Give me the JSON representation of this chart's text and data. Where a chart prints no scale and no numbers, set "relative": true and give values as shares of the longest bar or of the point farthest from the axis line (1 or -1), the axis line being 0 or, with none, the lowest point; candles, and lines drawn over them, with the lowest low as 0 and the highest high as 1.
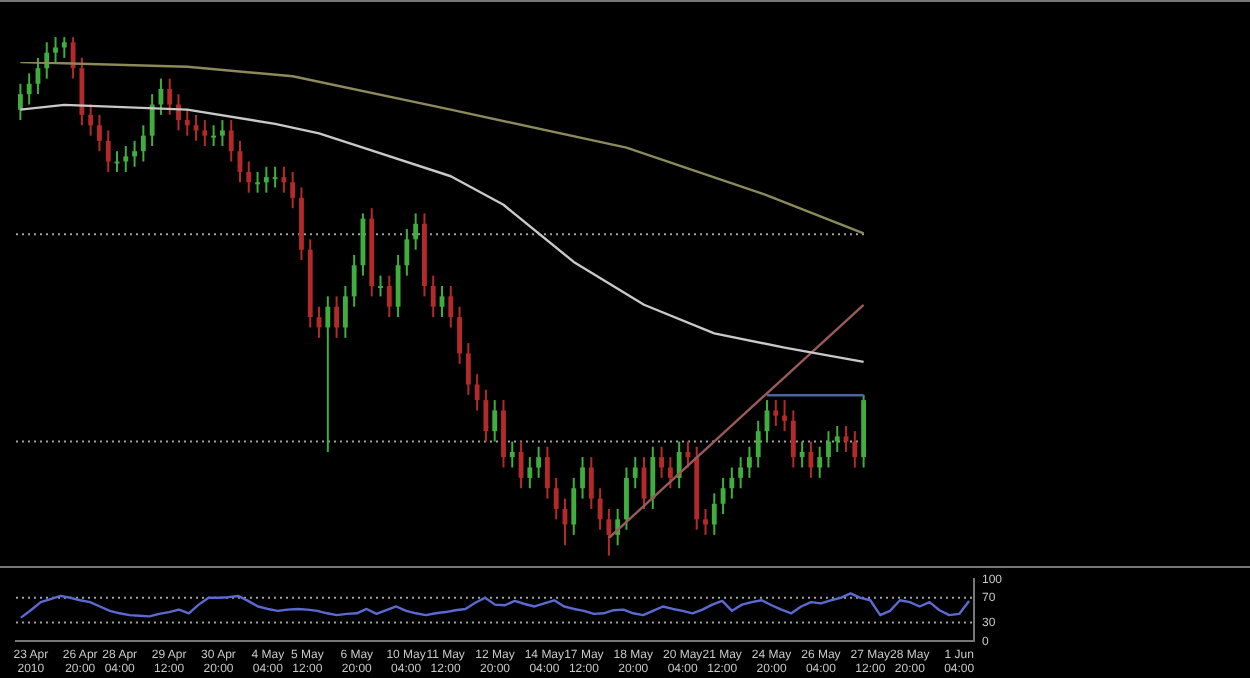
{
  "chart_data": [
    {
      "type": "candlestick",
      "relative": true,
      "tick_labels": false,
      "categories": [
        null,
        null,
        null,
        null,
        null,
        null,
        null,
        null,
        null,
        null,
        null,
        null,
        null,
        null,
        null,
        null,
        null,
        null,
        null,
        null,
        null,
        null,
        null,
        null,
        null,
        null,
        null,
        null,
        null,
        null,
        null,
        null,
        null,
        null,
        null,
        null,
        null,
        null,
        null,
        null,
        null,
        null,
        null,
        null,
        null,
        null,
        null,
        null,
        null,
        null,
        null,
        null,
        null,
        null,
        null,
        null,
        null,
        null,
        null,
        null,
        null,
        null,
        null,
        null,
        null,
        null,
        null,
        null,
        null,
        null,
        null,
        null,
        null,
        null,
        null,
        null,
        null,
        null,
        null,
        null,
        null,
        null,
        null,
        null,
        null,
        null,
        null,
        null,
        null,
        null,
        null,
        null,
        null,
        null,
        null,
        null,
        null
      ],
      "ohlc": [
        [
          0.86,
          0.91,
          0.84,
          0.89
        ],
        [
          0.89,
          0.93,
          0.87,
          0.91
        ],
        [
          0.91,
          0.96,
          0.89,
          0.94
        ],
        [
          0.94,
          0.99,
          0.92,
          0.97
        ],
        [
          0.97,
          1.0,
          0.95,
          0.98
        ],
        [
          0.98,
          1.0,
          0.96,
          0.99
        ],
        [
          0.99,
          1.0,
          0.92,
          0.94
        ],
        [
          0.94,
          0.96,
          0.83,
          0.85
        ],
        [
          0.85,
          0.87,
          0.81,
          0.83
        ],
        [
          0.83,
          0.85,
          0.78,
          0.8
        ],
        [
          0.8,
          0.82,
          0.74,
          0.76
        ],
        [
          0.76,
          0.78,
          0.74,
          0.76
        ],
        [
          0.76,
          0.79,
          0.74,
          0.77
        ],
        [
          0.77,
          0.8,
          0.75,
          0.78
        ],
        [
          0.78,
          0.83,
          0.76,
          0.81
        ],
        [
          0.81,
          0.89,
          0.79,
          0.87
        ],
        [
          0.87,
          0.92,
          0.85,
          0.9
        ],
        [
          0.9,
          0.92,
          0.85,
          0.87
        ],
        [
          0.87,
          0.89,
          0.82,
          0.84
        ],
        [
          0.84,
          0.86,
          0.81,
          0.83
        ],
        [
          0.83,
          0.85,
          0.8,
          0.82
        ],
        [
          0.82,
          0.84,
          0.79,
          0.81
        ],
        [
          0.81,
          0.83,
          0.79,
          0.81
        ],
        [
          0.81,
          0.84,
          0.79,
          0.82
        ],
        [
          0.82,
          0.84,
          0.76,
          0.78
        ],
        [
          0.78,
          0.8,
          0.72,
          0.74
        ],
        [
          0.74,
          0.76,
          0.7,
          0.72
        ],
        [
          0.72,
          0.74,
          0.7,
          0.72
        ],
        [
          0.72,
          0.75,
          0.7,
          0.73
        ],
        [
          0.73,
          0.75,
          0.71,
          0.73
        ],
        [
          0.73,
          0.75,
          0.7,
          0.72
        ],
        [
          0.72,
          0.74,
          0.67,
          0.69
        ],
        [
          0.69,
          0.71,
          0.57,
          0.59
        ],
        [
          0.59,
          0.61,
          0.44,
          0.46
        ],
        [
          0.46,
          0.48,
          0.42,
          0.44
        ],
        [
          0.44,
          0.5,
          0.2,
          0.48
        ],
        [
          0.48,
          0.5,
          0.42,
          0.44
        ],
        [
          0.44,
          0.52,
          0.42,
          0.5
        ],
        [
          0.5,
          0.58,
          0.48,
          0.56
        ],
        [
          0.56,
          0.66,
          0.54,
          0.65
        ],
        [
          0.65,
          0.67,
          0.5,
          0.52
        ],
        [
          0.52,
          0.54,
          0.5,
          0.52
        ],
        [
          0.52,
          0.54,
          0.46,
          0.48
        ],
        [
          0.48,
          0.58,
          0.46,
          0.56
        ],
        [
          0.56,
          0.63,
          0.54,
          0.61
        ],
        [
          0.61,
          0.66,
          0.59,
          0.64
        ],
        [
          0.64,
          0.66,
          0.5,
          0.52
        ],
        [
          0.52,
          0.54,
          0.46,
          0.48
        ],
        [
          0.48,
          0.52,
          0.46,
          0.5
        ],
        [
          0.5,
          0.52,
          0.44,
          0.46
        ],
        [
          0.46,
          0.48,
          0.37,
          0.39
        ],
        [
          0.39,
          0.41,
          0.31,
          0.33
        ],
        [
          0.33,
          0.35,
          0.28,
          0.3
        ],
        [
          0.3,
          0.32,
          0.22,
          0.24
        ],
        [
          0.24,
          0.3,
          0.22,
          0.28
        ],
        [
          0.28,
          0.3,
          0.17,
          0.19
        ],
        [
          0.19,
          0.22,
          0.17,
          0.2
        ],
        [
          0.2,
          0.22,
          0.13,
          0.15
        ],
        [
          0.15,
          0.19,
          0.13,
          0.17
        ],
        [
          0.17,
          0.21,
          0.15,
          0.19
        ],
        [
          0.19,
          0.21,
          0.11,
          0.13
        ],
        [
          0.13,
          0.15,
          0.07,
          0.09
        ],
        [
          0.09,
          0.11,
          0.02,
          0.06
        ],
        [
          0.06,
          0.15,
          0.04,
          0.13
        ],
        [
          0.13,
          0.19,
          0.11,
          0.17
        ],
        [
          0.17,
          0.19,
          0.09,
          0.11
        ],
        [
          0.11,
          0.13,
          0.05,
          0.07
        ],
        [
          0.07,
          0.09,
          0,
          0.04
        ],
        [
          0.04,
          0.09,
          0.02,
          0.07
        ],
        [
          0.07,
          0.17,
          0.05,
          0.15
        ],
        [
          0.15,
          0.19,
          0.13,
          0.17
        ],
        [
          0.17,
          0.19,
          0.09,
          0.11
        ],
        [
          0.11,
          0.21,
          0.09,
          0.19
        ],
        [
          0.19,
          0.21,
          0.15,
          0.17
        ],
        [
          0.17,
          0.19,
          0.13,
          0.15
        ],
        [
          0.15,
          0.22,
          0.13,
          0.2
        ],
        [
          0.2,
          0.22,
          0.17,
          0.19
        ],
        [
          0.19,
          0.21,
          0.05,
          0.07
        ],
        [
          0.07,
          0.09,
          0.04,
          0.06
        ],
        [
          0.06,
          0.12,
          0.04,
          0.1
        ],
        [
          0.1,
          0.15,
          0.08,
          0.13
        ],
        [
          0.13,
          0.17,
          0.11,
          0.15
        ],
        [
          0.15,
          0.19,
          0.13,
          0.17
        ],
        [
          0.17,
          0.21,
          0.15,
          0.19
        ],
        [
          0.19,
          0.26,
          0.17,
          0.24
        ],
        [
          0.24,
          0.3,
          0.22,
          0.28
        ],
        [
          0.28,
          0.3,
          0.25,
          0.27
        ],
        [
          0.27,
          0.3,
          0.24,
          0.26
        ],
        [
          0.26,
          0.28,
          0.17,
          0.19
        ],
        [
          0.19,
          0.22,
          0.17,
          0.2
        ],
        [
          0.2,
          0.22,
          0.15,
          0.17
        ],
        [
          0.17,
          0.21,
          0.15,
          0.19
        ],
        [
          0.19,
          0.24,
          0.17,
          0.22
        ],
        [
          0.22,
          0.25,
          0.2,
          0.23
        ],
        [
          0.23,
          0.25,
          0.2,
          0.22
        ],
        [
          0.22,
          0.24,
          0.17,
          0.19
        ],
        [
          0.19,
          0.31,
          0.17,
          0.3
        ]
      ],
      "ref_lines": [
        {
          "axis": "y",
          "value": 0.62,
          "color": "#a0a0a0",
          "line_style": "dotted"
        },
        {
          "axis": "y",
          "value": 0.22,
          "color": "#a0a0a0",
          "line_style": "dotted"
        }
      ]
    },
    {
      "type": "line",
      "relative": true,
      "tick_labels": false,
      "categories": [
        null,
        null,
        null,
        null,
        null,
        null,
        null,
        null,
        null,
        null,
        null,
        null,
        null,
        null,
        null,
        null,
        null,
        null,
        null,
        null,
        null,
        null,
        null,
        null,
        null,
        null,
        null,
        null,
        null,
        null,
        null,
        null,
        null,
        null,
        null,
        null,
        null,
        null,
        null,
        null,
        null,
        null,
        null,
        null,
        null,
        null,
        null,
        null,
        null,
        null,
        null,
        null,
        null,
        null,
        null,
        null,
        null,
        null,
        null,
        null,
        null,
        null,
        null,
        null,
        null,
        null,
        null,
        null,
        null,
        null,
        null,
        null,
        null,
        null,
        null,
        null,
        null,
        null,
        null,
        null,
        null,
        null,
        null,
        null,
        null,
        null,
        null,
        null,
        null,
        null,
        null,
        null,
        null,
        null,
        null,
        null,
        null
      ],
      "series": [
        {
          "type": "line",
          "color": "#8c8a5a",
          "values": [
            1.0,
            null,
            null,
            null,
            null,
            null,
            null,
            null,
            null,
            null,
            null,
            null,
            null,
            null,
            null,
            null,
            null,
            null,
            null,
            0.99,
            null,
            null,
            null,
            null,
            null,
            null,
            null,
            null,
            null,
            null,
            null,
            0.97,
            null,
            null,
            null,
            null,
            null,
            null,
            null,
            null,
            null,
            null,
            null,
            null,
            null,
            null,
            null,
            null,
            null,
            0.9,
            null,
            null,
            null,
            null,
            null,
            null,
            null,
            null,
            null,
            null,
            null,
            null,
            null,
            null,
            null,
            null,
            null,
            null,
            null,
            0.82,
            null,
            null,
            null,
            null,
            null,
            null,
            null,
            null,
            null,
            null,
            null,
            null,
            null,
            null,
            null,
            0.72,
            null,
            null,
            null,
            null,
            null,
            null,
            null,
            null,
            null,
            null,
            0.64
          ]
        },
        {
          "type": "line",
          "color": "#c8c8c8",
          "values": [
            0.9,
            null,
            null,
            null,
            null,
            0.91,
            null,
            null,
            null,
            null,
            null,
            null,
            null,
            null,
            null,
            null,
            null,
            null,
            null,
            0.9,
            null,
            null,
            null,
            null,
            null,
            null,
            null,
            null,
            null,
            0.87,
            null,
            null,
            null,
            null,
            0.85,
            null,
            null,
            null,
            null,
            0.82,
            null,
            null,
            null,
            null,
            null,
            null,
            null,
            null,
            null,
            0.76,
            null,
            null,
            null,
            null,
            null,
            0.7,
            null,
            null,
            null,
            null,
            null,
            null,
            null,
            0.58,
            null,
            null,
            null,
            null,
            null,
            null,
            null,
            0.49,
            null,
            null,
            null,
            null,
            null,
            null,
            null,
            0.43,
            null,
            null,
            null,
            null,
            null,
            null,
            null,
            0.4,
            null,
            null,
            null,
            null,
            null,
            null,
            null,
            null,
            0.37
          ]
        },
        {
          "type": "line",
          "color": "#9a5a5a",
          "values": [
            null,
            null,
            null,
            null,
            null,
            null,
            null,
            null,
            null,
            null,
            null,
            null,
            null,
            null,
            null,
            null,
            null,
            null,
            null,
            null,
            null,
            null,
            null,
            null,
            null,
            null,
            null,
            null,
            null,
            null,
            null,
            null,
            null,
            null,
            null,
            null,
            null,
            null,
            null,
            null,
            null,
            null,
            null,
            null,
            null,
            null,
            null,
            null,
            null,
            null,
            null,
            null,
            null,
            null,
            null,
            null,
            null,
            null,
            null,
            null,
            null,
            null,
            null,
            null,
            null,
            null,
            null,
            0,
            null,
            null,
            null,
            null,
            null,
            null,
            null,
            null,
            null,
            null,
            null,
            null,
            null,
            null,
            null,
            null,
            null,
            null,
            null,
            null,
            null,
            null,
            null,
            null,
            null,
            null,
            null,
            null,
            0.49
          ]
        },
        {
          "type": "line",
          "color": "#4a64a0",
          "values": [
            null,
            null,
            null,
            null,
            null,
            null,
            null,
            null,
            null,
            null,
            null,
            null,
            null,
            null,
            null,
            null,
            null,
            null,
            null,
            null,
            null,
            null,
            null,
            null,
            null,
            null,
            null,
            null,
            null,
            null,
            null,
            null,
            null,
            null,
            null,
            null,
            null,
            null,
            null,
            null,
            null,
            null,
            null,
            null,
            null,
            null,
            null,
            null,
            null,
            null,
            null,
            null,
            null,
            null,
            null,
            null,
            null,
            null,
            null,
            null,
            null,
            null,
            null,
            null,
            null,
            null,
            null,
            null,
            null,
            null,
            null,
            null,
            null,
            null,
            null,
            null,
            null,
            null,
            null,
            null,
            null,
            null,
            null,
            null,
            null,
            0.3,
            null,
            null,
            null,
            null,
            null,
            null,
            null,
            null,
            null,
            null,
            0.3
          ]
        }
      ]
    },
    {
      "type": "line",
      "categories": [
        null,
        "23 Apr 2010",
        null,
        null,
        null,
        null,
        "26 Apr 20:00",
        null,
        null,
        null,
        "28 Apr 04:00",
        null,
        null,
        null,
        null,
        "29 Apr 12:00",
        null,
        null,
        null,
        null,
        "30 Apr 20:00",
        null,
        null,
        null,
        null,
        "4 May 04:00",
        null,
        null,
        null,
        "5 May 12:00",
        null,
        null,
        null,
        null,
        "6 May 20:00",
        null,
        null,
        null,
        null,
        "10 May 04:00",
        null,
        null,
        null,
        "11 May 12:00",
        null,
        null,
        null,
        null,
        "12 May 20:00",
        null,
        null,
        null,
        null,
        "14 May 04:00",
        null,
        null,
        null,
        "17 May 12:00",
        null,
        null,
        null,
        null,
        "18 May 20:00",
        null,
        null,
        null,
        null,
        "20 May 04:00",
        null,
        null,
        null,
        "21 May 12:00",
        null,
        null,
        null,
        null,
        "24 May 20:00",
        null,
        null,
        null,
        null,
        "26 May 04:00",
        null,
        null,
        null,
        null,
        "27 May 12:00",
        null,
        null,
        null,
        "28 May 20:00",
        null,
        null,
        null,
        null,
        "1 Jun 04:00",
        null
      ],
      "series": [
        {
          "color": "#5a6ad0",
          "values": [
            38,
            50,
            63,
            68,
            73,
            70,
            66,
            63,
            56,
            49,
            45,
            42,
            41,
            40,
            44,
            47,
            51,
            45,
            59,
            70,
            70,
            71,
            73,
            65,
            56,
            52,
            49,
            51,
            52,
            51,
            49,
            45,
            42,
            44,
            45,
            52,
            44,
            50,
            56,
            49,
            45,
            42,
            45,
            47,
            50,
            52,
            62,
            70,
            59,
            58,
            65,
            60,
            56,
            61,
            66,
            56,
            52,
            49,
            44,
            45,
            50,
            51,
            45,
            42,
            49,
            56,
            52,
            49,
            45,
            51,
            59,
            65,
            49,
            59,
            63,
            66,
            58,
            51,
            45,
            56,
            63,
            61,
            66,
            70,
            77,
            70,
            66,
            42,
            49,
            66,
            63,
            56,
            63,
            50,
            42,
            44,
            65
          ]
        }
      ],
      "ylim": [
        0,
        100
      ],
      "yticks": [
        0,
        30,
        70,
        100
      ],
      "ref_lines": [
        {
          "axis": "y",
          "value": 30,
          "color": "#a0a0a0",
          "line_style": "dotted"
        },
        {
          "axis": "y",
          "value": 70,
          "color": "#a0a0a0",
          "line_style": "dotted"
        }
      ]
    }
  ]
}
